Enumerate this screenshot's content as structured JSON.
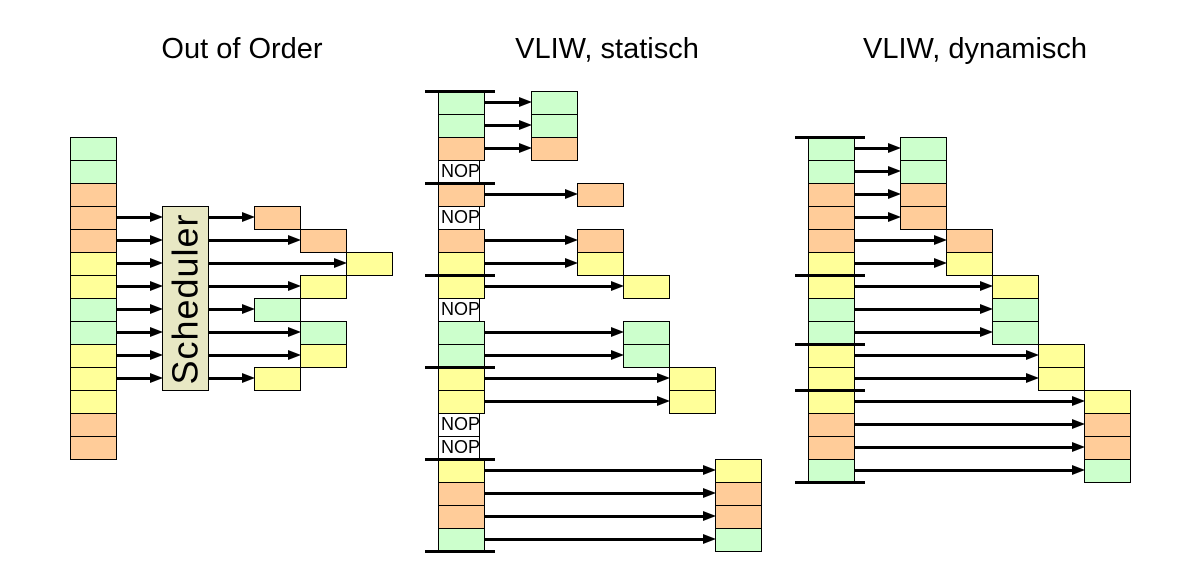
{
  "colors": {
    "green": "#ccffcc",
    "orange": "#ffcc99",
    "yellow": "#ffff99",
    "nop_fill": "#ffffff",
    "scheduler_fill": "#e8e8c4",
    "line": "#000000",
    "text": "#000000",
    "background": "#ffffff"
  },
  "panels": [
    {
      "id": "out-of-order",
      "title": "Out of Order",
      "scheduler_label": "Scheduler",
      "scheduler_rows": [
        3,
        10
      ],
      "slots": [
        "green",
        "green",
        "orange",
        "orange",
        "orange",
        "yellow",
        "yellow",
        "green",
        "green",
        "yellow",
        "yellow",
        "yellow",
        "orange",
        "orange"
      ],
      "separators": [],
      "outputs": [
        {
          "slot": 3,
          "col": 0,
          "color": "orange"
        },
        {
          "slot": 4,
          "col": 1,
          "color": "orange"
        },
        {
          "slot": 5,
          "col": 2,
          "color": "yellow"
        },
        {
          "slot": 6,
          "col": 1,
          "color": "yellow"
        },
        {
          "slot": 7,
          "col": 0,
          "color": "green"
        },
        {
          "slot": 8,
          "col": 1,
          "color": "green"
        },
        {
          "slot": 9,
          "col": 1,
          "color": "yellow"
        },
        {
          "slot": 10,
          "col": 0,
          "color": "yellow"
        }
      ]
    },
    {
      "id": "vliw-static",
      "title": "VLIW, statisch",
      "nop_label": "NOP",
      "slots": [
        "green",
        "green",
        "orange",
        "NOP",
        "orange",
        "NOP",
        "orange",
        "yellow",
        "yellow",
        "NOP",
        "green",
        "green",
        "yellow",
        "yellow",
        "NOP",
        "NOP",
        "yellow",
        "orange",
        "orange",
        "green"
      ],
      "separators": [
        0,
        4,
        8,
        12,
        16,
        20
      ],
      "outputs": [
        {
          "slot": 0,
          "col": 0,
          "color": "green"
        },
        {
          "slot": 1,
          "col": 0,
          "color": "green"
        },
        {
          "slot": 2,
          "col": 0,
          "color": "orange"
        },
        {
          "slot": 4,
          "col": 1,
          "color": "orange"
        },
        {
          "slot": 6,
          "col": 1,
          "color": "orange"
        },
        {
          "slot": 7,
          "col": 1,
          "color": "yellow"
        },
        {
          "slot": 8,
          "col": 2,
          "color": "yellow"
        },
        {
          "slot": 10,
          "col": 2,
          "color": "green"
        },
        {
          "slot": 11,
          "col": 2,
          "color": "green"
        },
        {
          "slot": 12,
          "col": 3,
          "color": "yellow"
        },
        {
          "slot": 13,
          "col": 3,
          "color": "yellow"
        },
        {
          "slot": 16,
          "col": 4,
          "color": "yellow"
        },
        {
          "slot": 17,
          "col": 4,
          "color": "orange"
        },
        {
          "slot": 18,
          "col": 4,
          "color": "orange"
        },
        {
          "slot": 19,
          "col": 4,
          "color": "green"
        }
      ]
    },
    {
      "id": "vliw-dynamic",
      "title": "VLIW, dynamisch",
      "slots": [
        "green",
        "green",
        "orange",
        "orange",
        "orange",
        "yellow",
        "yellow",
        "green",
        "green",
        "yellow",
        "yellow",
        "yellow",
        "orange",
        "orange",
        "green"
      ],
      "separators": [
        0,
        6,
        9,
        11,
        15
      ],
      "outputs": [
        {
          "slot": 0,
          "col": 0,
          "color": "green"
        },
        {
          "slot": 1,
          "col": 0,
          "color": "green"
        },
        {
          "slot": 2,
          "col": 0,
          "color": "orange"
        },
        {
          "slot": 3,
          "col": 0,
          "color": "orange"
        },
        {
          "slot": 4,
          "col": 1,
          "color": "orange"
        },
        {
          "slot": 5,
          "col": 1,
          "color": "yellow"
        },
        {
          "slot": 6,
          "col": 2,
          "color": "yellow"
        },
        {
          "slot": 7,
          "col": 2,
          "color": "green"
        },
        {
          "slot": 8,
          "col": 2,
          "color": "green"
        },
        {
          "slot": 9,
          "col": 3,
          "color": "yellow"
        },
        {
          "slot": 10,
          "col": 3,
          "color": "yellow"
        },
        {
          "slot": 11,
          "col": 4,
          "color": "yellow"
        },
        {
          "slot": 12,
          "col": 4,
          "color": "orange"
        },
        {
          "slot": 13,
          "col": 4,
          "color": "orange"
        },
        {
          "slot": 14,
          "col": 4,
          "color": "green"
        }
      ]
    }
  ]
}
